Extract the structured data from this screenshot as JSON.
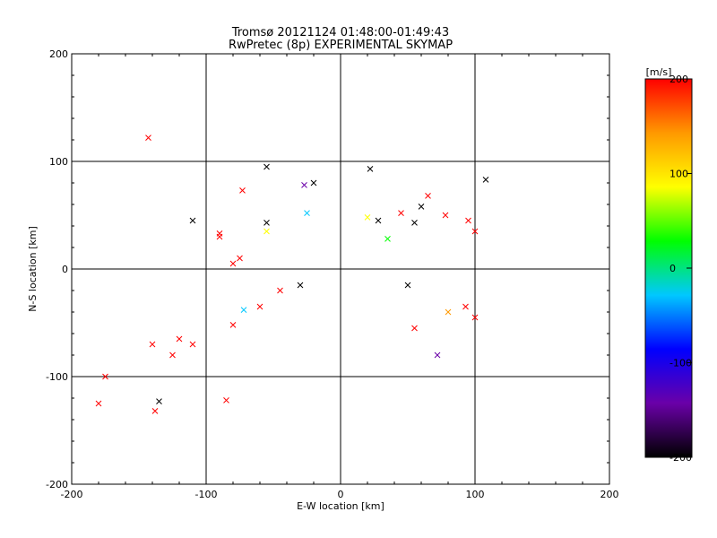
{
  "chart_data": {
    "type": "scatter",
    "title": "Tromsø 20121124 01:48:00-01:49:43",
    "subtitle": "RwPretec (8p) EXPERIMENTAL SKYMAP",
    "xlabel": "E-W location [km]",
    "ylabel": "N-S location [km]",
    "xlim": [
      -200,
      200
    ],
    "ylim": [
      -200,
      200
    ],
    "x_ticks": [
      "-200",
      "-100",
      "0",
      "100",
      "200"
    ],
    "y_ticks": [
      "200",
      "100",
      "0",
      "-100",
      "-200"
    ],
    "grid_lines_km": [
      -100,
      0,
      100
    ],
    "colorbar": {
      "label": "[m/s]",
      "range": [
        -200,
        200
      ],
      "ticks": [
        "200",
        "100",
        "0",
        "-100",
        "-200"
      ],
      "colors": [
        "#000000",
        "#6a00a8",
        "#0000ff",
        "#00c8ff",
        "#00ff00",
        "#ffff00",
        "#ff9900",
        "#ff0000"
      ]
    },
    "x_markers": [
      {
        "x": -143,
        "y": 122,
        "v": 200
      },
      {
        "x": -110,
        "y": 45,
        "v": -200
      },
      {
        "x": -55,
        "y": 95,
        "v": -200
      },
      {
        "x": -55,
        "y": 43,
        "v": -200
      },
      {
        "x": -55,
        "y": 35,
        "v": 100
      },
      {
        "x": -27,
        "y": 78,
        "v": -130
      },
      {
        "x": -20,
        "y": 80,
        "v": -200
      },
      {
        "x": 22,
        "y": 93,
        "v": -200
      },
      {
        "x": 28,
        "y": 45,
        "v": -200
      },
      {
        "x": 60,
        "y": 58,
        "v": -200
      },
      {
        "x": 108,
        "y": 83,
        "v": -200
      },
      {
        "x": 55,
        "y": 43,
        "v": -200
      },
      {
        "x": 65,
        "y": 68,
        "v": 200
      },
      {
        "x": 45,
        "y": 52,
        "v": 180
      },
      {
        "x": 78,
        "y": 50,
        "v": 200
      },
      {
        "x": 95,
        "y": 45,
        "v": 200
      },
      {
        "x": -140,
        "y": -70,
        "v": 200
      },
      {
        "x": -120,
        "y": -65,
        "v": 200
      },
      {
        "x": -110,
        "y": -70,
        "v": 200
      },
      {
        "x": -125,
        "y": -80,
        "v": 200
      },
      {
        "x": -175,
        "y": -100,
        "v": 200
      },
      {
        "x": -180,
        "y": -125,
        "v": 200
      },
      {
        "x": -135,
        "y": -123,
        "v": -200
      },
      {
        "x": -138,
        "y": -132,
        "v": 200
      },
      {
        "x": -85,
        "y": -122,
        "v": 200
      },
      {
        "x": -80,
        "y": -52,
        "v": 200
      },
      {
        "x": -73,
        "y": 73,
        "v": 200
      },
      {
        "x": -90,
        "y": 33,
        "v": 200
      },
      {
        "x": -60,
        "y": -35,
        "v": 200
      },
      {
        "x": -45,
        "y": -20,
        "v": 200
      },
      {
        "x": -30,
        "y": -15,
        "v": -200
      },
      {
        "x": -90,
        "y": 30,
        "v": 200
      },
      {
        "x": -25,
        "y": 52,
        "v": -40
      },
      {
        "x": -72,
        "y": -38,
        "v": -40
      },
      {
        "x": 72,
        "y": -80,
        "v": -120
      },
      {
        "x": 55,
        "y": -55,
        "v": 200
      },
      {
        "x": 80,
        "y": -40,
        "v": 120
      },
      {
        "x": 100,
        "y": -45,
        "v": 200
      },
      {
        "x": 50,
        "y": -15,
        "v": -200
      },
      {
        "x": 35,
        "y": 28,
        "v": 30
      },
      {
        "x": 100,
        "y": 35,
        "v": 200
      },
      {
        "x": 93,
        "y": -35,
        "v": 200
      },
      {
        "x": -80,
        "y": 5,
        "v": 200
      },
      {
        "x": -75,
        "y": 10,
        "v": 200
      },
      {
        "x": 20,
        "y": 48,
        "v": 100
      }
    ]
  }
}
